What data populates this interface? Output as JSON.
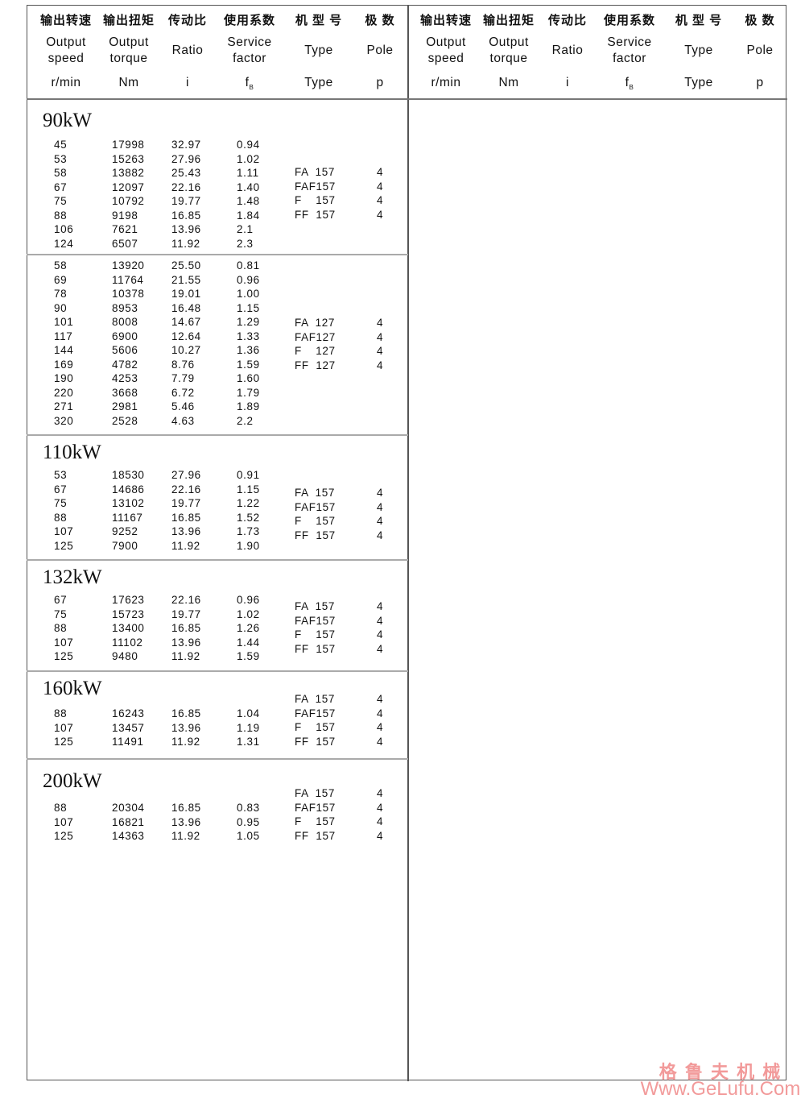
{
  "header": {
    "cn": [
      "输出转速",
      "输出扭矩",
      "传动比",
      "使用系数",
      "机 型 号",
      "极 数"
    ],
    "en": [
      "Output\nspeed",
      "Output\ntorque",
      "Ratio",
      "Service\nfactor",
      "Type",
      "Pole"
    ],
    "units": [
      "r/min",
      "Nm",
      "i",
      "f",
      "Type",
      "p"
    ],
    "fb_sub": "B"
  },
  "groups": [
    {
      "title": "90kW",
      "speed": [
        "45",
        "53",
        "58",
        "67",
        "75",
        "88",
        "106",
        "124"
      ],
      "torque": [
        "17998",
        "15263",
        "13882",
        "12097",
        "10792",
        "9198",
        "7621",
        "6507"
      ],
      "ratio": [
        "32.97",
        "27.96",
        "25.43",
        "22.16",
        "19.77",
        "16.85",
        "13.96",
        "11.92"
      ],
      "fb": [
        "0.94",
        "1.02",
        "1.11",
        "1.40",
        "1.48",
        "1.84",
        "2.1",
        "2.3"
      ],
      "type": [
        "FA  157",
        "FAF157",
        "F    157",
        "FF  157"
      ],
      "pole": [
        "4",
        "4",
        "4",
        "4"
      ]
    },
    {
      "title": "",
      "speed": [
        "58",
        "69",
        "78",
        "90",
        "101",
        "117",
        "144",
        "169",
        "190",
        "220",
        "271",
        "320"
      ],
      "torque": [
        "13920",
        "11764",
        "10378",
        "8953",
        "8008",
        "6900",
        "5606",
        "4782",
        "4253",
        "3668",
        "2981",
        "2528"
      ],
      "ratio": [
        "25.50",
        "21.55",
        "19.01",
        "16.48",
        "14.67",
        "12.64",
        "10.27",
        "8.76",
        "7.79",
        "6.72",
        "5.46",
        "4.63"
      ],
      "fb": [
        "0.81",
        "0.96",
        "1.00",
        "1.15",
        "1.29",
        "1.33",
        "1.36",
        "1.59",
        "1.60",
        "1.79",
        "1.89",
        "2.2"
      ],
      "type": [
        "FA  127",
        "FAF127",
        "F    127",
        "FF  127"
      ],
      "pole": [
        "4",
        "4",
        "4",
        "4"
      ]
    },
    {
      "title": "110kW",
      "speed": [
        "53",
        "67",
        "75",
        "88",
        "107",
        "125"
      ],
      "torque": [
        "18530",
        "14686",
        "13102",
        "11167",
        "9252",
        "7900"
      ],
      "ratio": [
        "27.96",
        "22.16",
        "19.77",
        "16.85",
        "13.96",
        "11.92"
      ],
      "fb": [
        "0.91",
        "1.15",
        "1.22",
        "1.52",
        "1.73",
        "1.90"
      ],
      "type": [
        "FA  157",
        "FAF157",
        "F    157",
        "FF  157"
      ],
      "pole": [
        "4",
        "4",
        "4",
        "4"
      ]
    },
    {
      "title": "132kW",
      "speed": [
        "67",
        "75",
        "88",
        "107",
        "125"
      ],
      "torque": [
        "17623",
        "15723",
        "13400",
        "11102",
        "9480"
      ],
      "ratio": [
        "22.16",
        "19.77",
        "16.85",
        "13.96",
        "11.92"
      ],
      "fb": [
        "0.96",
        "1.02",
        "1.26",
        "1.44",
        "1.59"
      ],
      "type": [
        "FA  157",
        "FAF157",
        "F    157",
        "FF  157"
      ],
      "pole": [
        "4",
        "4",
        "4",
        "4"
      ]
    },
    {
      "title": "160kW",
      "speed": [
        "88",
        "107",
        "125"
      ],
      "torque": [
        "16243",
        "13457",
        "11491"
      ],
      "ratio": [
        "16.85",
        "13.96",
        "11.92"
      ],
      "fb": [
        "1.04",
        "1.19",
        "1.31"
      ],
      "type": [
        "FA  157",
        "FAF157",
        "F    157",
        "FF  157"
      ],
      "pole": [
        "4",
        "4",
        "4",
        "4"
      ]
    },
    {
      "title": "200kW",
      "speed": [
        "88",
        "107",
        "125"
      ],
      "torque": [
        "20304",
        "16821",
        "14363"
      ],
      "ratio": [
        "16.85",
        "13.96",
        "11.92"
      ],
      "fb": [
        "0.83",
        "0.95",
        "1.05"
      ],
      "type": [
        "FA  157",
        "FAF157",
        "F    157",
        "FF  157"
      ],
      "pole": [
        "4",
        "4",
        "4",
        "4"
      ]
    }
  ],
  "watermark": {
    "cn": "格 鲁 夫 机 械",
    "url": "Www.GeLufu.Com",
    "color": "#f29a9a"
  }
}
